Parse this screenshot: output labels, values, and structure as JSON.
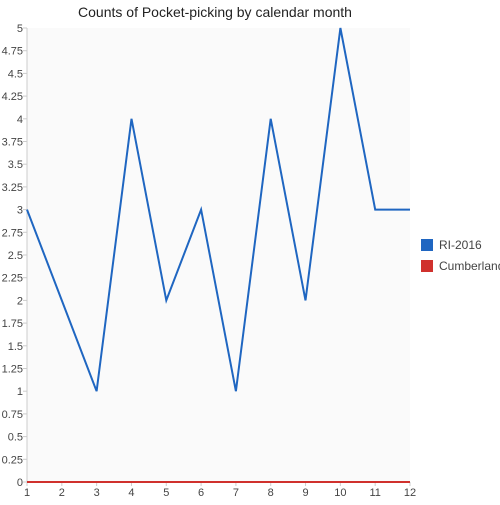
{
  "chart_data": {
    "type": "line",
    "title": "Counts of Pocket-picking by calendar month",
    "xlabel": "",
    "ylabel": "",
    "x": [
      1,
      2,
      3,
      4,
      5,
      6,
      7,
      8,
      9,
      10,
      11,
      12
    ],
    "x_tick_labels": [
      "1",
      "2",
      "3",
      "4",
      "5",
      "6",
      "7",
      "8",
      "9",
      "10",
      "11",
      "12"
    ],
    "xlim": [
      1,
      12
    ],
    "ylim": [
      0,
      5
    ],
    "y_ticks": [
      0,
      0.25,
      0.5,
      0.75,
      1,
      1.25,
      1.5,
      1.75,
      2,
      2.25,
      2.5,
      2.75,
      3,
      3.25,
      3.5,
      3.75,
      4,
      4.25,
      4.5,
      4.75,
      5
    ],
    "y_tick_labels": [
      "0",
      "0.25",
      "0.5",
      "0.75",
      "1",
      "1.25",
      "1.5",
      "1.75",
      "2",
      "2.25",
      "2.5",
      "2.75",
      "3",
      "3.25",
      "3.5",
      "3.75",
      "4",
      "4.25",
      "4.5",
      "4.75",
      "5"
    ],
    "grid": false,
    "legend_position": "right",
    "series": [
      {
        "name": "RI-2016",
        "color": "#1f66c1",
        "values": [
          3,
          2,
          1,
          4,
          2,
          3,
          1,
          4,
          2,
          5,
          3,
          3
        ]
      },
      {
        "name": "Cumberland",
        "color": "#d0312d",
        "values": [
          0,
          0,
          0,
          0,
          0,
          0,
          0,
          0,
          0,
          0,
          0,
          0
        ]
      }
    ],
    "colors": {
      "axis": "#cccccc",
      "plot_background": "#fafafa"
    }
  }
}
